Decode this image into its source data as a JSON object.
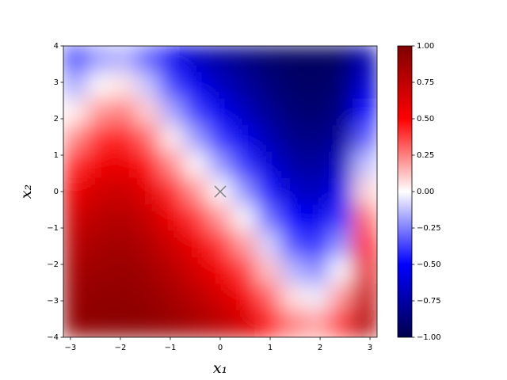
{
  "chart_data": {
    "type": "heatmap",
    "xlabel": "x₁",
    "ylabel": "x₂",
    "xlim": [
      -3.14159,
      3.14159
    ],
    "ylim": [
      -4,
      4
    ],
    "xticks": [
      {
        "value": -3,
        "label": "−3"
      },
      {
        "value": -2,
        "label": "−2"
      },
      {
        "value": -1,
        "label": "−1"
      },
      0,
      1,
      2,
      3
    ],
    "yticks": [
      {
        "value": -4,
        "label": "−4"
      },
      {
        "value": -3,
        "label": "−3"
      },
      {
        "value": -2,
        "label": "−2"
      },
      {
        "value": -1,
        "label": "−1"
      },
      0,
      1,
      2,
      3,
      4
    ],
    "colormap": "seismic",
    "clim": [
      -1,
      1
    ],
    "cticks": [
      {
        "value": -1,
        "label": "−1.00"
      },
      {
        "value": -0.75,
        "label": "−0.75"
      },
      {
        "value": -0.5,
        "label": "−0.50"
      },
      {
        "value": -0.25,
        "label": "−0.25"
      },
      {
        "value": 0,
        "label": "0.00"
      },
      {
        "value": 0.25,
        "label": "0.25"
      },
      {
        "value": 0.5,
        "label": "0.50"
      },
      {
        "value": 0.75,
        "label": "0.75"
      },
      {
        "value": 1,
        "label": "1.00"
      }
    ],
    "x": [
      -2.9,
      -2.416,
      -1.933,
      -1.45,
      -0.967,
      -0.483,
      0,
      0.483,
      0.967,
      1.45,
      1.933,
      2.416,
      2.9
    ],
    "y": [
      3.636,
      2.909,
      2.182,
      1.455,
      0.727,
      0,
      -0.727,
      -1.455,
      -2.182,
      -2.909,
      -3.636
    ],
    "z": [
      [
        -0.36,
        -0.19,
        -0.15,
        -0.31,
        -0.53,
        -0.67,
        -0.77,
        -0.84,
        -0.91,
        -0.94,
        -0.95,
        -0.93,
        -0.73
      ],
      [
        -0.17,
        0.01,
        0.05,
        -0.11,
        -0.36,
        -0.54,
        -0.67,
        -0.77,
        -0.86,
        -0.92,
        -0.93,
        -0.89,
        -0.62
      ],
      [
        0.03,
        0.21,
        0.25,
        0.09,
        -0.17,
        -0.38,
        -0.54,
        -0.68,
        -0.8,
        -0.88,
        -0.9,
        -0.84,
        -0.48
      ],
      [
        0.23,
        0.4,
        0.43,
        0.29,
        0.03,
        -0.19,
        -0.39,
        -0.55,
        -0.71,
        -0.82,
        -0.85,
        -0.77,
        -0.31
      ],
      [
        0.41,
        0.55,
        0.58,
        0.46,
        0.23,
        0.01,
        -0.2,
        -0.39,
        -0.6,
        -0.74,
        -0.78,
        -0.67,
        -0.12
      ],
      [
        0.57,
        0.68,
        0.7,
        0.6,
        0.41,
        0.21,
        0.0,
        -0.21,
        -0.45,
        -0.64,
        -0.69,
        -0.55,
        0.08
      ],
      [
        0.69,
        0.77,
        0.79,
        0.72,
        0.56,
        0.39,
        0.2,
        -0.01,
        -0.28,
        -0.5,
        -0.56,
        -0.39,
        0.28
      ],
      [
        0.78,
        0.84,
        0.86,
        0.8,
        0.69,
        0.55,
        0.39,
        0.19,
        -0.08,
        -0.34,
        -0.41,
        -0.21,
        0.45
      ],
      [
        0.85,
        0.89,
        0.9,
        0.86,
        0.78,
        0.67,
        0.54,
        0.38,
        0.12,
        -0.14,
        -0.23,
        -0.01,
        0.6
      ],
      [
        0.9,
        0.93,
        0.93,
        0.91,
        0.85,
        0.77,
        0.67,
        0.54,
        0.31,
        0.06,
        -0.03,
        0.2,
        0.72
      ],
      [
        0.93,
        0.95,
        0.96,
        0.94,
        0.9,
        0.84,
        0.77,
        0.67,
        0.48,
        0.26,
        0.18,
        0.38,
        0.8
      ]
    ],
    "markers": {
      "x": [
        0
      ],
      "y": [
        0
      ],
      "color": "#808080"
    }
  }
}
